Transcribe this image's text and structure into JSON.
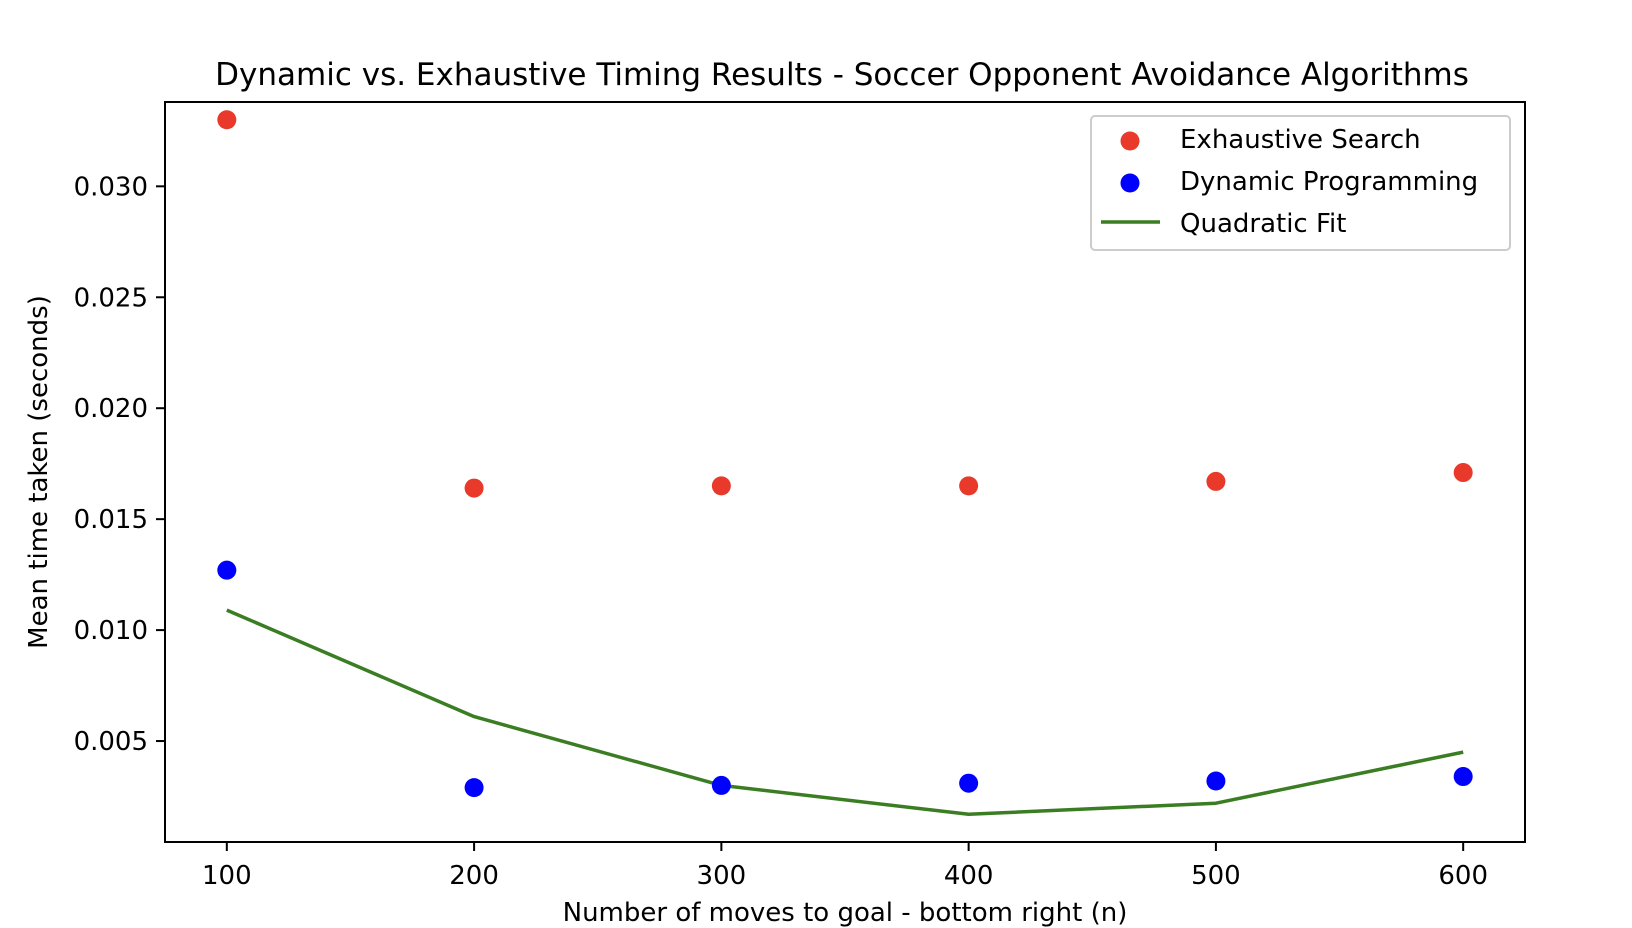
{
  "chart_data": {
    "type": "scatter",
    "title": "Dynamic vs. Exhaustive Timing Results - Soccer Opponent Avoidance Algorithms",
    "xlabel": "Number of moves to goal - bottom right (n)",
    "ylabel": "Mean time taken (seconds)",
    "x": [
      100,
      200,
      300,
      400,
      500,
      600
    ],
    "xticks": [
      "100",
      "200",
      "300",
      "400",
      "500",
      "600"
    ],
    "yticks": [
      "0.005",
      "0.010",
      "0.015",
      "0.020",
      "0.025",
      "0.030"
    ],
    "xlim": [
      75,
      625
    ],
    "ylim": [
      0.00045,
      0.0338
    ],
    "grid": false,
    "legend_position": "top-right",
    "series": [
      {
        "name": "Exhaustive Search",
        "kind": "scatter",
        "color": "#e8392b",
        "values": [
          0.033,
          0.0164,
          0.0165,
          0.0165,
          0.0167,
          0.0171
        ]
      },
      {
        "name": "Dynamic Programming",
        "kind": "scatter",
        "color": "#0000ff",
        "values": [
          0.0127,
          0.0029,
          0.003,
          0.0031,
          0.0032,
          0.0034
        ]
      },
      {
        "name": "Quadratic Fit",
        "kind": "line",
        "color": "#3a7d22",
        "values": [
          0.0109,
          0.0061,
          0.003,
          0.0017,
          0.0022,
          0.0045
        ]
      }
    ]
  }
}
